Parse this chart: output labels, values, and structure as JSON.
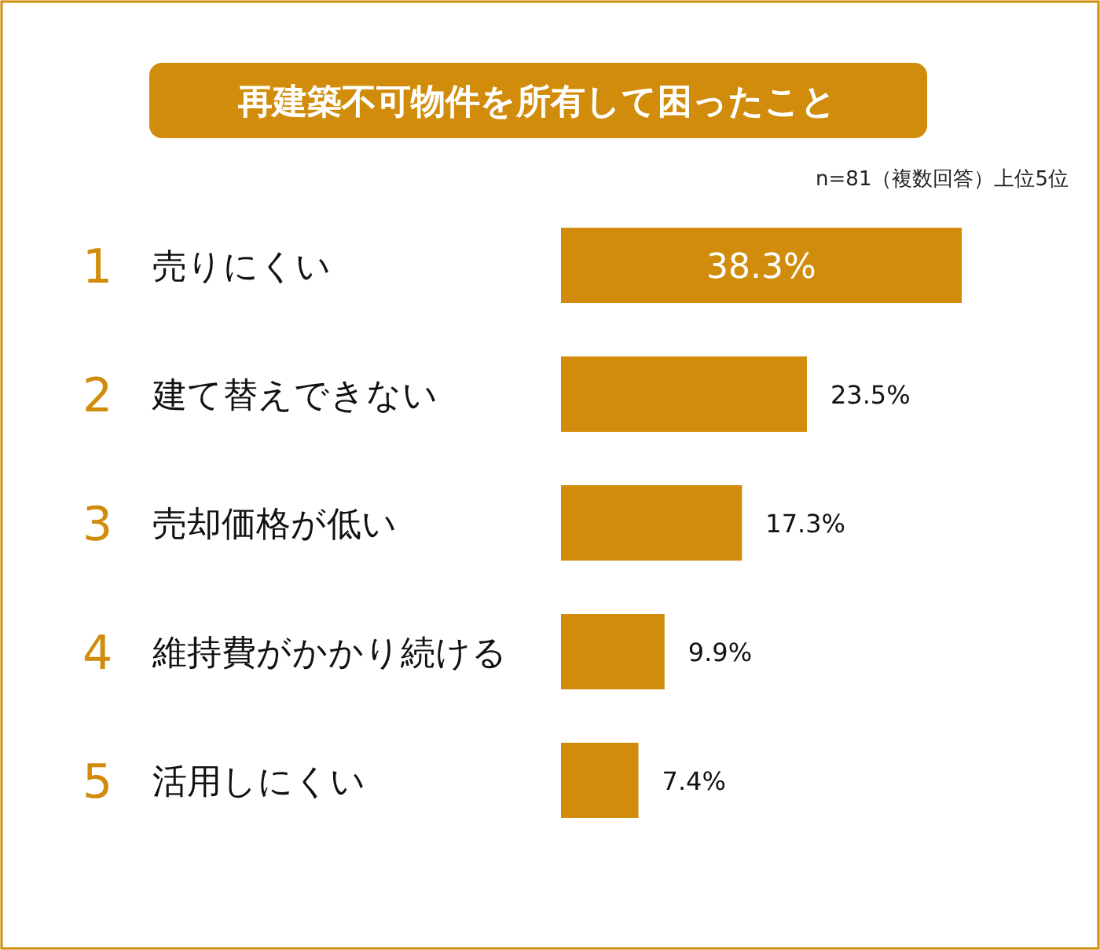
{
  "chart_data": {
    "type": "bar",
    "orientation": "horizontal",
    "title": "再建築不可物件を所有して困ったこと",
    "subtitle": "n=81（複数回答）上位5位",
    "categories": [
      "売りにくい",
      "建て替えできない",
      "売却価格が低い",
      "維持費がかかり続ける",
      "活用しにくい"
    ],
    "values": [
      38.3,
      23.5,
      17.3,
      9.9,
      7.4
    ],
    "color": "#d08c0a",
    "value_labels": [
      "38.3%",
      "23.5%",
      "17.3%",
      "9.9%",
      "7.4%"
    ],
    "annotations": [
      "1",
      "2",
      "3",
      "4",
      "5"
    ]
  }
}
